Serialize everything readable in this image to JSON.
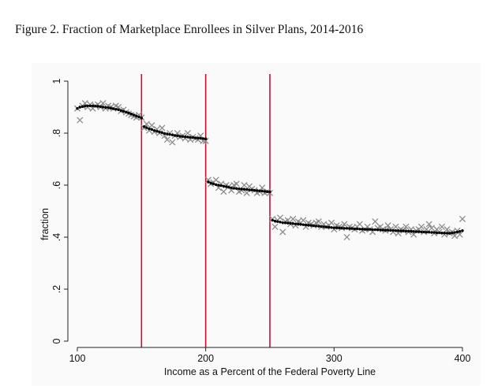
{
  "figure": {
    "title": "Figure 2. Fraction of Marketplace Enrollees in Silver Plans, 2014-2016"
  },
  "chart_data": {
    "type": "scatter",
    "title": "Figure 2. Fraction of Marketplace Enrollees in Silver Plans, 2014-2016",
    "xlabel": "Income as a Percent of the Federal Poverty Line",
    "ylabel": "fraction",
    "xlim": [
      100,
      400
    ],
    "ylim": [
      0,
      1
    ],
    "x_ticks": [
      100,
      200,
      300,
      400
    ],
    "x_tick_labels": [
      "100",
      "200",
      "300",
      "400"
    ],
    "y_ticks": [
      0,
      0.2,
      0.4,
      0.6,
      0.8,
      1
    ],
    "y_tick_labels": [
      "0",
      ".2",
      ".4",
      ".6",
      ".8",
      "1"
    ],
    "vertical_lines": [
      150,
      200,
      250
    ],
    "vertical_line_color": "#c8102e",
    "marker_color": "#8c8c8c",
    "fit_color": "#000000",
    "grid": false,
    "legend": "none",
    "series": [
      {
        "marker": "x",
        "x": [
          100,
          102,
          104,
          106,
          108,
          110,
          112,
          114,
          116,
          118,
          120,
          122,
          124,
          126,
          128,
          130,
          132,
          134,
          136,
          138,
          140,
          142,
          144,
          146,
          148,
          150,
          152,
          154,
          156,
          158,
          160,
          162,
          164,
          166,
          168,
          170,
          172,
          174,
          176,
          178,
          180,
          182,
          184,
          186,
          188,
          190,
          192,
          194,
          196,
          198,
          200,
          202,
          204,
          206,
          208,
          210,
          212,
          214,
          216,
          218,
          220,
          222,
          224,
          226,
          228,
          230,
          232,
          234,
          236,
          238,
          240,
          242,
          244,
          246,
          248,
          250,
          252,
          254,
          256,
          258,
          260,
          262,
          264,
          266,
          268,
          270,
          272,
          274,
          276,
          278,
          280,
          282,
          284,
          286,
          288,
          290,
          292,
          294,
          296,
          298,
          300,
          302,
          304,
          306,
          308,
          310,
          312,
          314,
          316,
          318,
          320,
          322,
          324,
          326,
          328,
          330,
          332,
          334,
          336,
          338,
          340,
          342,
          344,
          346,
          348,
          350,
          352,
          354,
          356,
          358,
          360,
          362,
          364,
          366,
          368,
          370,
          372,
          374,
          376,
          378,
          380,
          382,
          384,
          386,
          388,
          390,
          392,
          394,
          396,
          398,
          400
        ],
        "y": [
          0.895,
          0.85,
          0.905,
          0.915,
          0.9,
          0.91,
          0.895,
          0.905,
          0.91,
          0.9,
          0.915,
          0.895,
          0.905,
          0.9,
          0.895,
          0.905,
          0.9,
          0.885,
          0.89,
          0.88,
          0.875,
          0.87,
          0.865,
          0.86,
          0.87,
          0.86,
          0.82,
          0.835,
          0.81,
          0.83,
          0.805,
          0.815,
          0.8,
          0.82,
          0.79,
          0.775,
          0.8,
          0.765,
          0.79,
          0.8,
          0.785,
          0.79,
          0.78,
          0.8,
          0.775,
          0.785,
          0.78,
          0.775,
          0.79,
          0.77,
          0.77,
          0.62,
          0.605,
          0.61,
          0.62,
          0.59,
          0.605,
          0.575,
          0.6,
          0.595,
          0.58,
          0.6,
          0.605,
          0.575,
          0.58,
          0.6,
          0.57,
          0.595,
          0.585,
          0.58,
          0.57,
          0.575,
          0.59,
          0.57,
          0.575,
          0.57,
          0.47,
          0.44,
          0.465,
          0.475,
          0.42,
          0.46,
          0.465,
          0.45,
          0.47,
          0.445,
          0.46,
          0.455,
          0.465,
          0.44,
          0.455,
          0.45,
          0.445,
          0.455,
          0.46,
          0.44,
          0.45,
          0.44,
          0.445,
          0.455,
          0.43,
          0.445,
          0.44,
          0.435,
          0.45,
          0.4,
          0.44,
          0.435,
          0.43,
          0.44,
          0.45,
          0.425,
          0.43,
          0.44,
          0.43,
          0.42,
          0.46,
          0.435,
          0.44,
          0.43,
          0.425,
          0.445,
          0.43,
          0.42,
          0.44,
          0.415,
          0.43,
          0.425,
          0.44,
          0.42,
          0.43,
          0.41,
          0.425,
          0.43,
          0.44,
          0.42,
          0.43,
          0.45,
          0.435,
          0.415,
          0.43,
          0.42,
          0.44,
          0.41,
          0.43,
          0.415,
          0.42,
          0.405,
          0.425,
          0.41,
          0.47
        ]
      },
      {
        "marker": "dot-fit",
        "x": [
          100,
          102,
          104,
          106,
          108,
          110,
          112,
          114,
          116,
          118,
          120,
          122,
          124,
          126,
          128,
          130,
          132,
          134,
          136,
          138,
          140,
          142,
          144,
          146,
          148,
          150,
          152,
          154,
          156,
          158,
          160,
          162,
          164,
          166,
          168,
          170,
          172,
          174,
          176,
          178,
          180,
          182,
          184,
          186,
          188,
          190,
          192,
          194,
          196,
          198,
          200,
          202,
          204,
          206,
          208,
          210,
          212,
          214,
          216,
          218,
          220,
          222,
          224,
          226,
          228,
          230,
          232,
          234,
          236,
          238,
          240,
          242,
          244,
          246,
          248,
          250,
          252,
          254,
          256,
          258,
          260,
          262,
          264,
          266,
          268,
          270,
          272,
          274,
          276,
          278,
          280,
          282,
          284,
          286,
          288,
          290,
          292,
          294,
          296,
          298,
          300,
          302,
          304,
          306,
          308,
          310,
          312,
          314,
          316,
          318,
          320,
          322,
          324,
          326,
          328,
          330,
          332,
          334,
          336,
          338,
          340,
          342,
          344,
          346,
          348,
          350,
          352,
          354,
          356,
          358,
          360,
          362,
          364,
          366,
          368,
          370,
          372,
          374,
          376,
          378,
          380,
          382,
          384,
          386,
          388,
          390,
          392,
          394,
          396,
          398,
          400
        ],
        "y": [
          0.895,
          0.9,
          0.902,
          0.904,
          0.905,
          0.905,
          0.905,
          0.904,
          0.903,
          0.902,
          0.9,
          0.899,
          0.898,
          0.896,
          0.894,
          0.892,
          0.89,
          0.887,
          0.884,
          0.881,
          0.878,
          0.874,
          0.87,
          0.866,
          0.862,
          0.858,
          0.825,
          0.821,
          0.817,
          0.814,
          0.81,
          0.807,
          0.804,
          0.802,
          0.799,
          0.797,
          0.795,
          0.793,
          0.791,
          0.79,
          0.788,
          0.787,
          0.786,
          0.785,
          0.784,
          0.783,
          0.782,
          0.781,
          0.78,
          0.779,
          0.778,
          0.612,
          0.608,
          0.605,
          0.602,
          0.6,
          0.598,
          0.596,
          0.594,
          0.592,
          0.59,
          0.588,
          0.587,
          0.586,
          0.585,
          0.584,
          0.583,
          0.582,
          0.581,
          0.58,
          0.579,
          0.578,
          0.577,
          0.576,
          0.575,
          0.574,
          0.465,
          0.462,
          0.46,
          0.458,
          0.456,
          0.455,
          0.454,
          0.453,
          0.452,
          0.451,
          0.45,
          0.449,
          0.448,
          0.447,
          0.446,
          0.445,
          0.444,
          0.443,
          0.442,
          0.441,
          0.44,
          0.439,
          0.438,
          0.437,
          0.436,
          0.436,
          0.435,
          0.435,
          0.434,
          0.434,
          0.433,
          0.433,
          0.432,
          0.432,
          0.431,
          0.431,
          0.43,
          0.43,
          0.43,
          0.429,
          0.429,
          0.428,
          0.428,
          0.427,
          0.427,
          0.427,
          0.426,
          0.426,
          0.425,
          0.425,
          0.424,
          0.424,
          0.423,
          0.423,
          0.422,
          0.422,
          0.421,
          0.421,
          0.42,
          0.42,
          0.419,
          0.419,
          0.418,
          0.418,
          0.417,
          0.417,
          0.416,
          0.416,
          0.415,
          0.415,
          0.416,
          0.418,
          0.42,
          0.422,
          0.425
        ]
      }
    ]
  }
}
